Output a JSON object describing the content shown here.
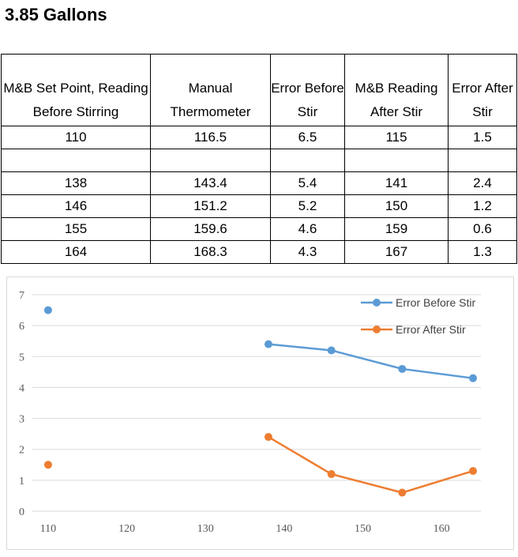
{
  "title": "3.85 Gallons",
  "table": {
    "headers": [
      "M&B Set Point, Reading Before Stirring",
      "Manual Thermometer",
      "Error Before Stir",
      "M&B Reading After Stir",
      "Error After Stir"
    ],
    "rows": [
      [
        "110",
        "116.5",
        "6.5",
        "115",
        "1.5"
      ],
      [
        "",
        "",
        "",
        "",
        ""
      ],
      [
        "138",
        "143.4",
        "5.4",
        "141",
        "2.4"
      ],
      [
        "146",
        "151.2",
        "5.2",
        "150",
        "1.2"
      ],
      [
        "155",
        "159.6",
        "4.6",
        "159",
        "0.6"
      ],
      [
        "164",
        "168.3",
        "4.3",
        "167",
        "1.3"
      ]
    ]
  },
  "chart_data": {
    "type": "line",
    "title": "",
    "xlabel": "",
    "ylabel": "",
    "xlim": [
      108,
      165
    ],
    "ylim": [
      0,
      7
    ],
    "x_ticks": [
      110,
      120,
      130,
      140,
      150,
      160
    ],
    "y_ticks": [
      0,
      1,
      2,
      3,
      4,
      5,
      6,
      7
    ],
    "grid": "horizontal",
    "legend": "top-right",
    "series": [
      {
        "name": "Error Before Stir",
        "color": "#5b9bd5",
        "points": [
          [
            110,
            6.5
          ],
          [
            138,
            5.4
          ],
          [
            146,
            5.2
          ],
          [
            155,
            4.6
          ],
          [
            164,
            4.3
          ]
        ]
      },
      {
        "name": "Error After Stir",
        "color": "#ed7d31",
        "points": [
          [
            110,
            1.5
          ],
          [
            138,
            2.4
          ],
          [
            146,
            1.2
          ],
          [
            155,
            0.6
          ],
          [
            164,
            1.3
          ]
        ]
      }
    ]
  }
}
